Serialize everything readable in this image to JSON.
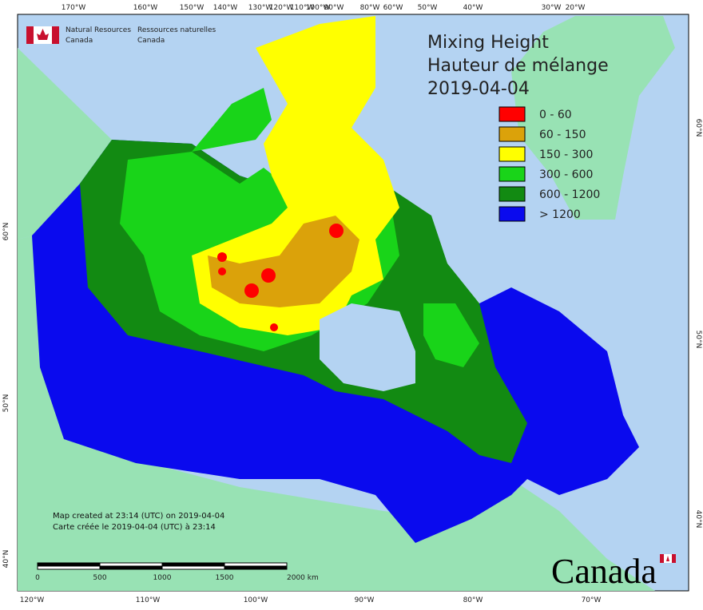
{
  "map": {
    "title": [
      "Mixing Height",
      "Hauteur de mélange",
      "2019-04-04"
    ],
    "agency": {
      "en": [
        "Natural Resources",
        "Canada"
      ],
      "fr": [
        "Ressources naturelles",
        "Canada"
      ]
    },
    "legend": [
      {
        "label": "0 - 60",
        "color": "#ff0000"
      },
      {
        "label": "60 - 150",
        "color": "#dba20a"
      },
      {
        "label": "150 - 300",
        "color": "#ffff00"
      },
      {
        "label": "300 - 600",
        "color": "#19d419"
      },
      {
        "label": "600 - 1200",
        "color": "#128a12"
      },
      {
        "label": "> 1200",
        "color": "#0a0aee"
      }
    ],
    "top_labels": [
      "170°W",
      "160°W",
      "150°W",
      "140°W",
      "130°W",
      "120°W",
      "110°W",
      "100°W",
      "90°W",
      "80°W",
      "60°W",
      "50°W",
      "40°W",
      "30°W",
      "20°W"
    ],
    "bottom_labels": [
      "120°W",
      "110°W",
      "100°W",
      "90°W",
      "80°W",
      "70°W"
    ],
    "left_labels": [
      "60°N",
      "50°N",
      "40°N"
    ],
    "right_labels": [
      "60°N",
      "50°N",
      "40°N"
    ],
    "footnote": [
      "Map created at 23:14 (UTC) on 2019-04-04",
      "Carte créée le 2019-04-04 (UTC) à 23:14"
    ],
    "scale_labels": [
      "0",
      "500",
      "1000",
      "1500",
      "2000 km"
    ],
    "wordmark": "Canada"
  }
}
